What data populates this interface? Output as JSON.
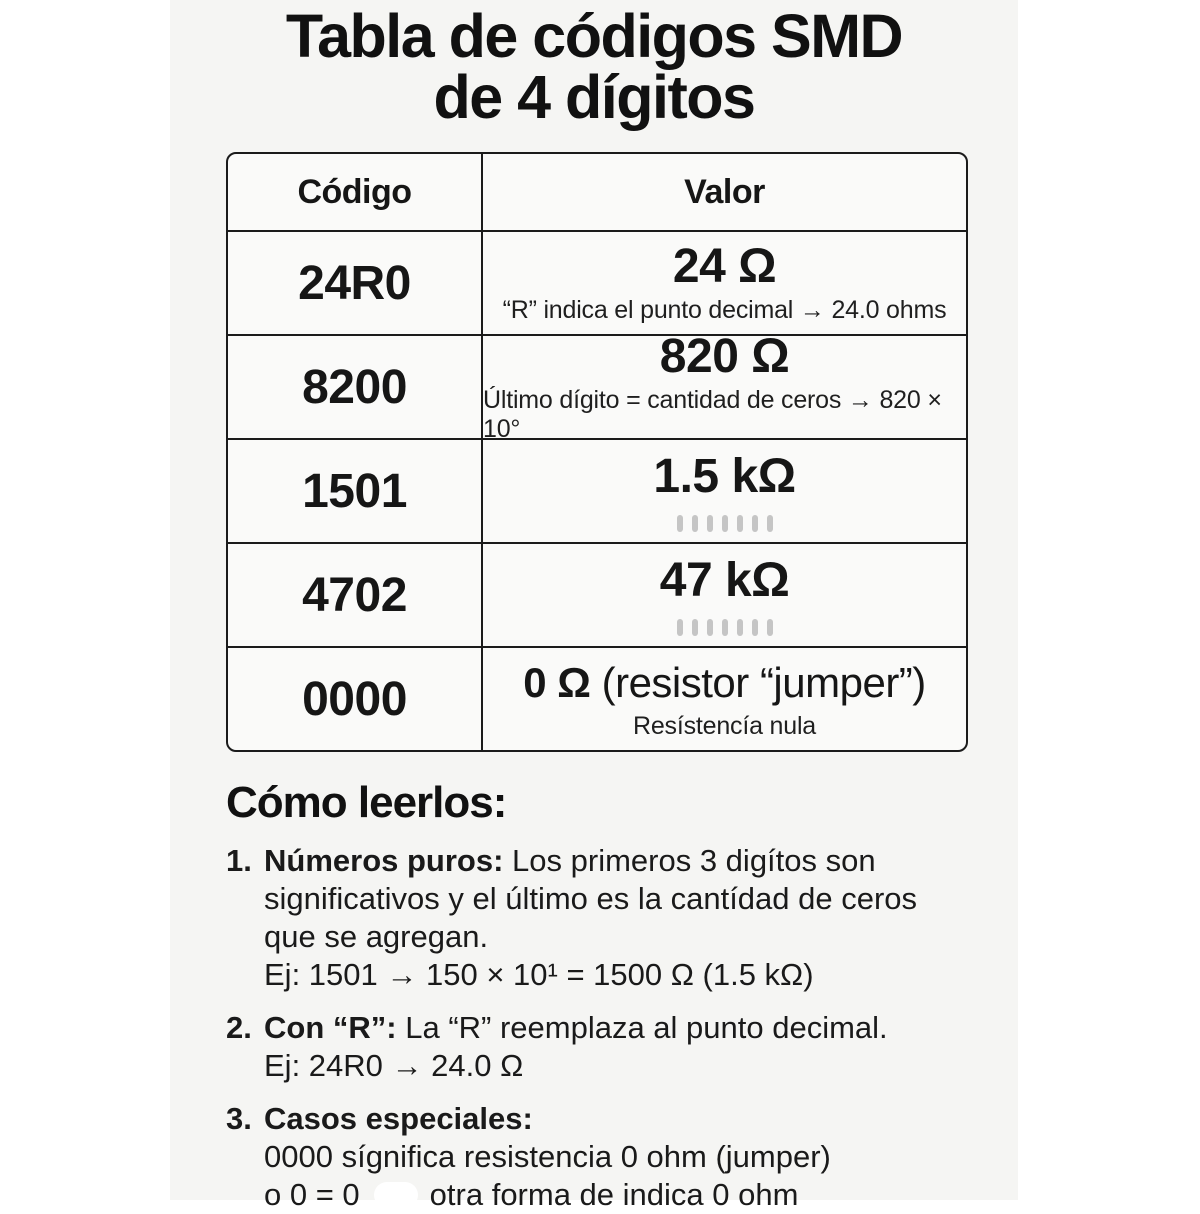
{
  "page": {
    "title_line1": "Tabla de códigos SMD",
    "title_line2": "de 4 dígitos"
  },
  "table": {
    "headers": {
      "code": "Código",
      "value": "Valor"
    },
    "rows": [
      {
        "code": "24R0",
        "value": "24 Ω",
        "note": "“R” indica el punto decimal → 24.0 ohms"
      },
      {
        "code": "8200",
        "value": "820 Ω",
        "note": "Último dígito = cantidad de ceros → 820 × 10°"
      },
      {
        "code": "1501",
        "value": "1.5 kΩ",
        "tick_marks": 7
      },
      {
        "code": "4702",
        "value": "47 kΩ",
        "tick_marks": 7
      },
      {
        "code": "0000",
        "value": "0 Ω",
        "value_suffix": "(resistor “jumper”)",
        "note": "Resístencía nula"
      }
    ]
  },
  "howto": {
    "heading": "Cómo leerlos:",
    "items": [
      {
        "num": "1.",
        "lead": "Números puros:",
        "body": "Los primeros 3 digítos son significativos y el último es la cantídad de ceros que se agregan.",
        "example": "Ej: 1501 → 150 × 10¹ = 1500 Ω (1.5 kΩ)"
      },
      {
        "num": "2.",
        "lead": "Con “R”:",
        "body": "La “R” reemplaza al punto decimal.",
        "example": "Ej: 24R0 → 24.0 Ω"
      },
      {
        "num": "3.",
        "lead": "Casos especiales:",
        "line1": "0000 sígnifica resistencia 0 ohm (jumper)",
        "line2_prefix": "o 0 = 0",
        "line2_suffix": "otra forma de indica 0 ohm"
      }
    ]
  },
  "colors": {
    "panel_bg": "#f5f5f3",
    "cell_bg": "#fafaf9",
    "border": "#1b1b1b",
    "text": "#161616",
    "tick_gray": "#c5c5c5"
  }
}
